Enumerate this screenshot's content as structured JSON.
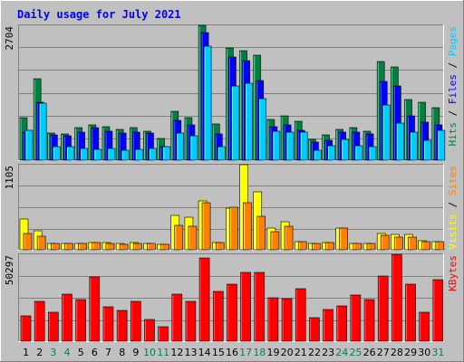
{
  "chart_data": [
    {
      "type": "bar",
      "title": "Daily usage for July 2021",
      "categories": [
        "1",
        "2",
        "3",
        "4",
        "5",
        "6",
        "7",
        "8",
        "9",
        "10",
        "11",
        "12",
        "13",
        "14",
        "15",
        "16",
        "17",
        "18",
        "19",
        "20",
        "21",
        "22",
        "23",
        "24",
        "25",
        "26",
        "27",
        "28",
        "29",
        "30",
        "31"
      ],
      "weekend_days": [
        "3",
        "4",
        "10",
        "11",
        "17",
        "18",
        "24",
        "25",
        "31"
      ],
      "ymax_label": "2704",
      "ylim": [
        0,
        2704
      ],
      "legend": [
        {
          "label": "Pages",
          "color": "#00ccff"
        },
        {
          "label": "Files",
          "color": "#0000ff"
        },
        {
          "label": "Hits",
          "color": "#008040"
        }
      ],
      "series": [
        {
          "name": "Hits",
          "color": "#008040",
          "values": [
            847,
            1637,
            549,
            526,
            658,
            711,
            674,
            611,
            658,
            580,
            435,
            975,
            847,
            2704,
            720,
            2255,
            2204,
            2103,
            822,
            887,
            778,
            410,
            513,
            624,
            657,
            588,
            1987,
            1870,
            1217,
            1163,
            1057
          ]
        },
        {
          "name": "Files",
          "color": "#0000ff",
          "values": [
            568,
            1166,
            505,
            488,
            561,
            660,
            582,
            553,
            560,
            536,
            280,
            796,
            704,
            2550,
            523,
            2065,
            2000,
            1603,
            680,
            705,
            599,
            358,
            403,
            565,
            555,
            520,
            1575,
            1494,
            892,
            769,
            714
          ]
        },
        {
          "name": "Pages",
          "color": "#00ccff",
          "values": [
            598,
            1144,
            265,
            265,
            238,
            221,
            230,
            205,
            221,
            231,
            281,
            546,
            494,
            2288,
            279,
            1486,
            1547,
            1231,
            576,
            566,
            570,
            194,
            288,
            410,
            288,
            275,
            1106,
            743,
            562,
            391,
            598
          ]
        }
      ]
    },
    {
      "type": "bar",
      "ymax_label": "1105",
      "ylim": [
        0,
        1105
      ],
      "legend": [
        {
          "label": "Sites",
          "color": "#ff8000"
        },
        {
          "label": "Visits",
          "color": "#ffff00"
        }
      ],
      "series": [
        {
          "name": "Visits",
          "color": "#ffff00",
          "values": [
            400,
            250,
            80,
            80,
            80,
            90,
            90,
            80,
            90,
            80,
            70,
            450,
            420,
            630,
            90,
            540,
            1105,
            750,
            280,
            360,
            100,
            80,
            90,
            280,
            80,
            80,
            210,
            200,
            200,
            120,
            100
          ]
        },
        {
          "name": "Sites",
          "color": "#ff8000",
          "values": [
            215,
            175,
            80,
            80,
            80,
            90,
            80,
            70,
            80,
            80,
            70,
            320,
            310,
            610,
            90,
            550,
            610,
            440,
            240,
            310,
            100,
            80,
            90,
            280,
            80,
            80,
            190,
            160,
            170,
            100,
            100
          ]
        }
      ]
    },
    {
      "type": "bar",
      "ymax_label": "50297",
      "ylim": [
        0,
        50297
      ],
      "legend": [
        {
          "label": "KBytes",
          "color": "#ff0000"
        }
      ],
      "series": [
        {
          "name": "KBytes",
          "color": "#ff0000",
          "values": [
            14800,
            23300,
            16600,
            27500,
            24000,
            37000,
            19800,
            17600,
            23300,
            12600,
            8200,
            27000,
            23300,
            48000,
            28700,
            33100,
            39700,
            39700,
            24900,
            24400,
            30400,
            13700,
            18500,
            20600,
            26800,
            24000,
            37600,
            50297,
            33100,
            16600,
            35600
          ]
        }
      ]
    }
  ],
  "colors": {
    "background": "#c0c0c0",
    "title": "#0000ff",
    "weekend_label": "#00805c",
    "weekday_label": "#000000",
    "gridline": "#808080"
  }
}
